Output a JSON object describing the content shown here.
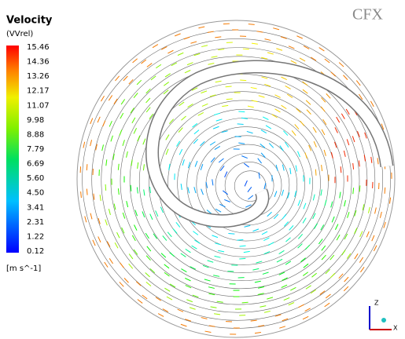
{
  "legend": {
    "title": "Velocity",
    "subtitle": "(VVrel)",
    "ticks": [
      "15.46",
      "14.36",
      "13.26",
      "12.17",
      "11.07",
      "9.98",
      "8.88",
      "7.79",
      "6.69",
      "5.60",
      "4.50",
      "3.41",
      "2.31",
      "1.22",
      "0.12"
    ],
    "unit": "[m s^-1]"
  },
  "logo": "CFX",
  "axes": {
    "z": "Z",
    "x": "X"
  }
}
